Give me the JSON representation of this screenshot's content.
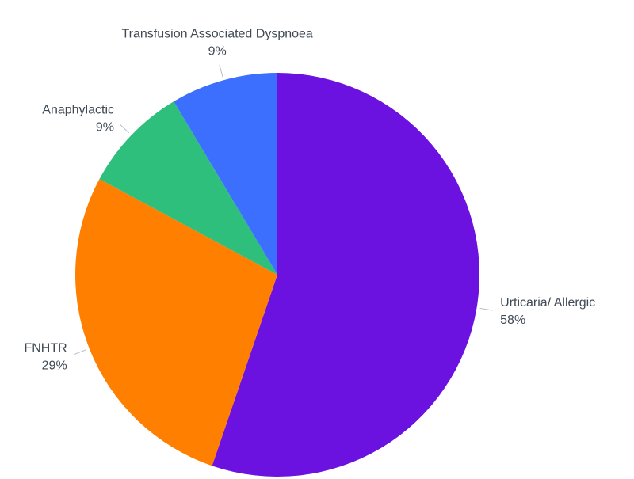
{
  "chart_data": {
    "type": "pie",
    "categories": [
      "Urticaria/ Allergic",
      "FNHTR",
      "Anaphylactic",
      "Transfusion Associated Dyspnoea"
    ],
    "values": [
      58,
      29,
      9,
      9
    ],
    "value_labels": [
      "58%",
      "29%",
      "9%",
      "9%"
    ],
    "colors": [
      "#6b11e0",
      "#ff7f00",
      "#2ebf7d",
      "#3d6fff"
    ]
  }
}
